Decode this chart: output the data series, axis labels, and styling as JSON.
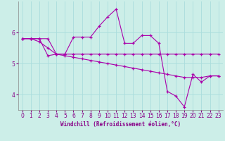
{
  "xlabel": "Windchill (Refroidissement éolien,°C)",
  "background_color": "#cceee8",
  "grid_color": "#aadddd",
  "line_color": "#aa00aa",
  "xlim": [
    -0.5,
    23.5
  ],
  "ylim": [
    3.5,
    7.0
  ],
  "yticks": [
    4,
    5,
    6
  ],
  "xticks": [
    0,
    1,
    2,
    3,
    4,
    5,
    6,
    7,
    8,
    9,
    10,
    11,
    12,
    13,
    14,
    15,
    16,
    17,
    18,
    19,
    20,
    21,
    22,
    23
  ],
  "series1_x": [
    0,
    1,
    2,
    3,
    4,
    5,
    6,
    7,
    8,
    9,
    10,
    11,
    12,
    13,
    14,
    15,
    16,
    17,
    18,
    19,
    20,
    21,
    22,
    23
  ],
  "series1_y": [
    5.8,
    5.8,
    5.8,
    5.25,
    5.3,
    5.3,
    5.85,
    5.85,
    5.85,
    6.2,
    6.5,
    6.75,
    5.65,
    5.65,
    5.9,
    5.9,
    5.65,
    4.1,
    3.95,
    3.6,
    4.65,
    4.4,
    4.6,
    4.6
  ],
  "series2_x": [
    0,
    1,
    2,
    3,
    4,
    5,
    6,
    7,
    8,
    9,
    10,
    11,
    12,
    13,
    14,
    15,
    16,
    17,
    18,
    19,
    20,
    21,
    22,
    23
  ],
  "series2_y": [
    5.8,
    5.8,
    5.8,
    5.8,
    5.3,
    5.3,
    5.3,
    5.3,
    5.3,
    5.3,
    5.3,
    5.3,
    5.3,
    5.3,
    5.3,
    5.3,
    5.3,
    5.3,
    5.3,
    5.3,
    5.3,
    5.3,
    5.3,
    5.3
  ],
  "series3_x": [
    0,
    1,
    2,
    3,
    4,
    5,
    6,
    7,
    8,
    9,
    10,
    11,
    12,
    13,
    14,
    15,
    16,
    17,
    18,
    19,
    20,
    21,
    22,
    23
  ],
  "series3_y": [
    5.8,
    5.8,
    5.7,
    5.5,
    5.3,
    5.25,
    5.2,
    5.15,
    5.1,
    5.05,
    5.0,
    4.95,
    4.9,
    4.85,
    4.8,
    4.75,
    4.7,
    4.65,
    4.6,
    4.55,
    4.55,
    4.55,
    4.6,
    4.6
  ]
}
